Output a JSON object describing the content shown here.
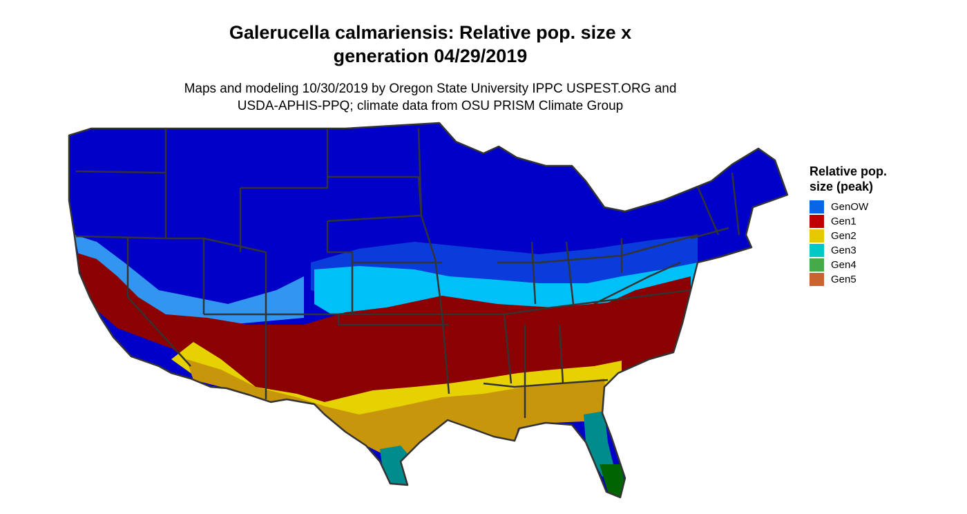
{
  "title": {
    "line1": "Galerucella calmariensis: Relative pop. size x",
    "line2": "generation 04/29/2019"
  },
  "subtitle": {
    "line1": "Maps and modeling 10/30/2019 by Oregon State University IPPC USPEST.ORG and",
    "line2": "USDA-APHIS-PPQ; climate data from OSU PRISM Climate Group"
  },
  "legend": {
    "title_line1": "Relative pop.",
    "title_line2": "size (peak)",
    "items": [
      {
        "label": "GenOW",
        "color": "#0a64e6"
      },
      {
        "label": "Gen1",
        "color": "#c00000"
      },
      {
        "label": "Gen2",
        "color": "#e6c800"
      },
      {
        "label": "Gen3",
        "color": "#00c8c8"
      },
      {
        "label": "Gen4",
        "color": "#46aa46"
      },
      {
        "label": "Gen5",
        "color": "#c86432"
      }
    ]
  },
  "map_colors": {
    "background": "#ffffff",
    "overwinter_dark": "#0000c8",
    "overwinter_mid": "#0a3cdc",
    "overwinter_light": "#3296f0",
    "gen1_light": "#00c0f8",
    "gen1_dark": "#8b0000",
    "gen2_yellow": "#e6d200",
    "gen2_gold": "#c8960a",
    "gen3_teal": "#008c8c",
    "gen3_cyan": "#00c8c8",
    "gen4_green": "#006400",
    "gen5_orange": "#e6643c",
    "state_border": "#333333"
  }
}
